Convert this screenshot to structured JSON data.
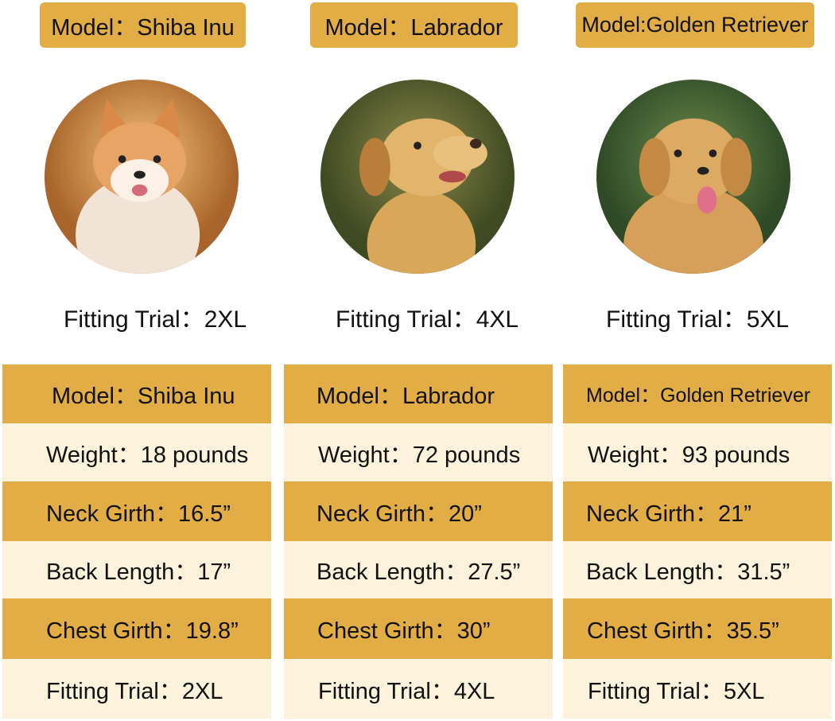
{
  "colors": {
    "gold": "#e2ad45",
    "cream": "#fdf2dc"
  },
  "dogs": [
    {
      "tag": "Model：Shiba Inu",
      "photo": "shiba-inu-photo",
      "fitting": "Fitting Trial：2XL",
      "rows": [
        "Model：Shiba Inu",
        "Weight：18 pounds",
        "Neck Girth：16.5”",
        "Back Length：17”",
        "Chest Girth：19.8”",
        "Fitting Trial：2XL"
      ]
    },
    {
      "tag": "Model：Labrador",
      "photo": "labrador-photo",
      "fitting": "Fitting Trial：4XL",
      "rows": [
        "Model：Labrador",
        "Weight：72 pounds",
        "Neck Girth：20”",
        "Back Length：27.5”",
        "Chest Girth：30”",
        "Fitting Trial：4XL"
      ]
    },
    {
      "tag": "Model:Golden Retriever",
      "photo": "golden-retriever-photo",
      "fitting": "Fitting Trial：5XL",
      "rows": [
        "Model：Golden Retriever",
        "Weight：93 pounds",
        "Neck Girth：21”",
        "Back Length：31.5”",
        "Chest Girth：35.5”",
        "Fitting Trial：5XL"
      ]
    }
  ]
}
